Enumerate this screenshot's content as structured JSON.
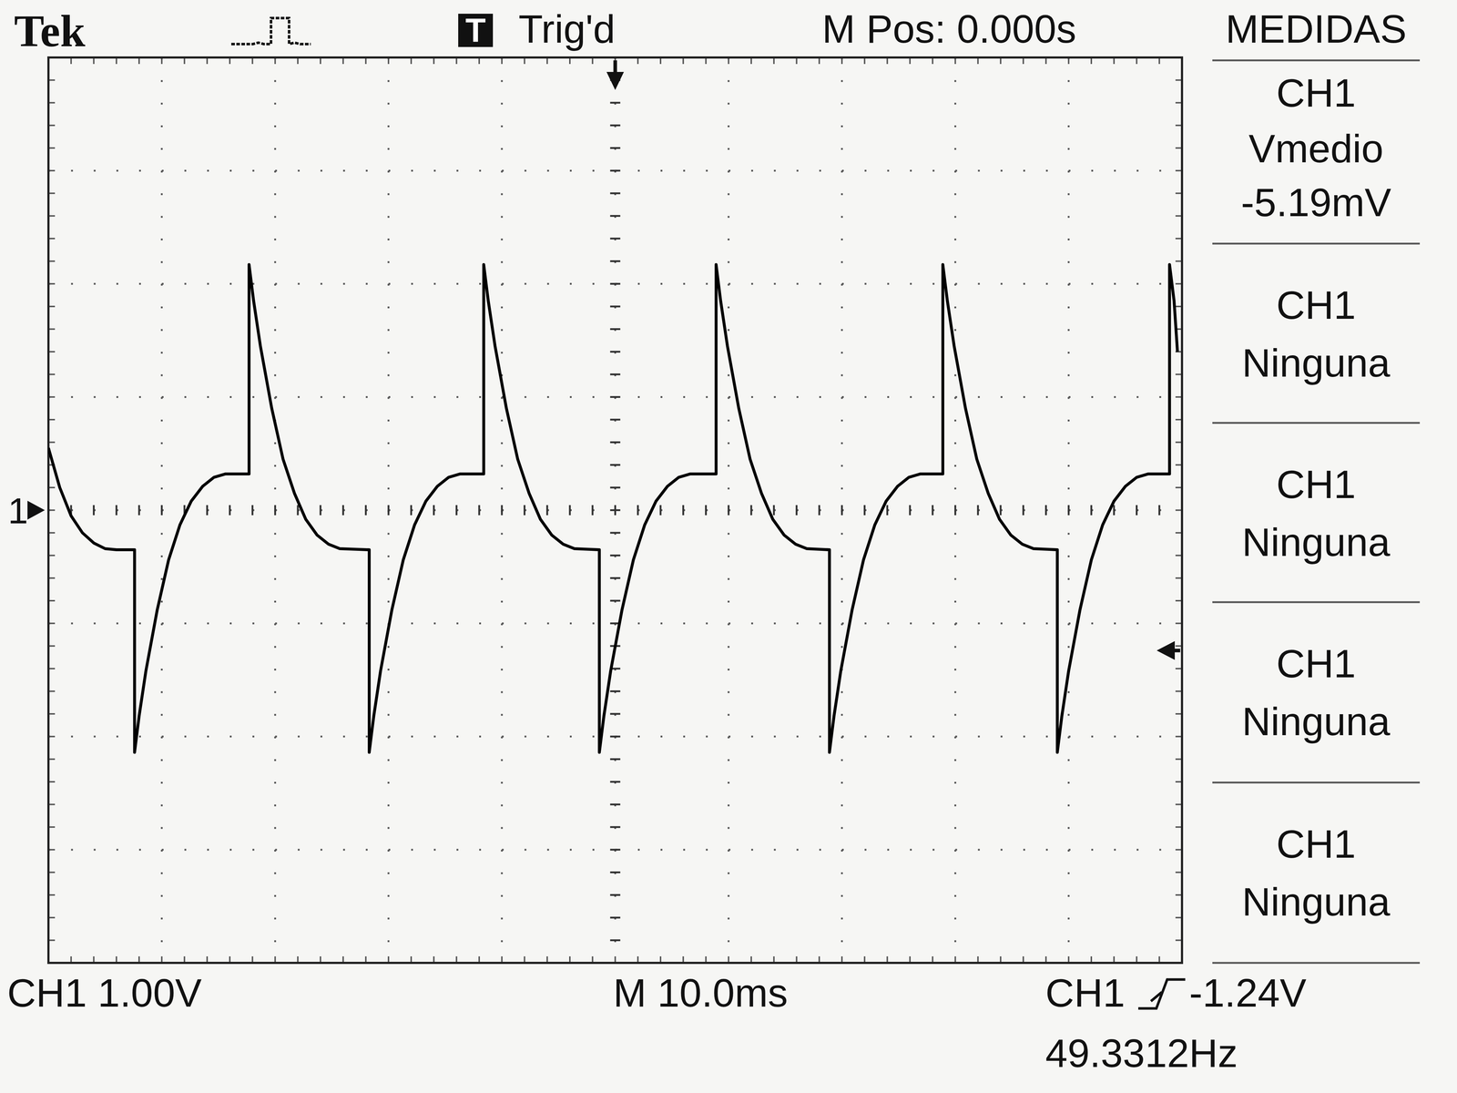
{
  "chart_data": {
    "type": "line",
    "color": "#000000",
    "grid": true,
    "tick_labels": false,
    "xlim": [
      -50,
      50
    ],
    "ylim": [
      -4,
      4
    ],
    "xticks": [
      -50,
      -40,
      -30,
      -20,
      -10,
      0,
      10,
      20,
      30,
      40,
      50
    ],
    "yticks": [
      -4,
      -3,
      -2,
      -1,
      0,
      1,
      2,
      3,
      4
    ],
    "x": [
      -50,
      -49,
      -48,
      -47,
      -46,
      -45,
      -44,
      -42.4,
      -42.4,
      -42.0,
      -41.4,
      -40.4,
      -39.4,
      -38.4,
      -37.4,
      -36.4,
      -35.4,
      -34.4,
      -32.3,
      -32.3,
      -31.9,
      -31.3,
      -30.3,
      -29.3,
      -28.3,
      -27.3,
      -26.3,
      -25.3,
      -24.3,
      -21.7,
      -21.7,
      -21.3,
      -20.7,
      -19.7,
      -18.7,
      -17.7,
      -16.7,
      -15.7,
      -14.7,
      -13.7,
      -11.6,
      -11.6,
      -11.2,
      -10.6,
      -9.6,
      -8.6,
      -7.6,
      -6.6,
      -5.6,
      -4.6,
      -3.6,
      -1.4,
      -1.4,
      -1.0,
      -0.4,
      0.6,
      1.6,
      2.6,
      3.6,
      4.6,
      5.6,
      6.6,
      8.9,
      8.9,
      9.3,
      9.9,
      10.9,
      11.9,
      12.9,
      13.9,
      14.9,
      15.9,
      16.9,
      18.9,
      18.9,
      19.3,
      19.9,
      20.9,
      21.9,
      22.9,
      23.9,
      24.9,
      25.9,
      26.9,
      28.9,
      28.9,
      29.3,
      29.9,
      30.9,
      31.9,
      32.9,
      33.9,
      34.9,
      35.9,
      36.9,
      39.0,
      39.0,
      39.4,
      40.0,
      41.0,
      42.0,
      43.0,
      44.0,
      45.0,
      46.0,
      47.0,
      48.9,
      48.9,
      49.3,
      49.6
    ],
    "values": [
      0.55,
      0.2,
      -0.05,
      -0.2,
      -0.29,
      -0.34,
      -0.35,
      -0.35,
      -2.14,
      -1.82,
      -1.42,
      -0.88,
      -0.44,
      -0.13,
      0.08,
      0.21,
      0.29,
      0.32,
      0.32,
      2.17,
      1.85,
      1.45,
      0.9,
      0.45,
      0.15,
      -0.08,
      -0.22,
      -0.3,
      -0.34,
      -0.35,
      -2.14,
      -1.82,
      -1.42,
      -0.88,
      -0.44,
      -0.13,
      0.08,
      0.21,
      0.29,
      0.32,
      0.32,
      2.17,
      1.85,
      1.45,
      0.9,
      0.45,
      0.15,
      -0.08,
      -0.22,
      -0.3,
      -0.34,
      -0.35,
      -2.14,
      -1.82,
      -1.42,
      -0.88,
      -0.44,
      -0.13,
      0.08,
      0.21,
      0.29,
      0.32,
      0.32,
      2.17,
      1.85,
      1.45,
      0.9,
      0.45,
      0.15,
      -0.08,
      -0.22,
      -0.3,
      -0.34,
      -0.35,
      -2.14,
      -1.82,
      -1.42,
      -0.88,
      -0.44,
      -0.13,
      0.08,
      0.21,
      0.29,
      0.32,
      0.32,
      2.17,
      1.85,
      1.45,
      0.9,
      0.45,
      0.15,
      -0.08,
      -0.22,
      -0.3,
      -0.34,
      -0.35,
      -2.14,
      -1.82,
      -1.42,
      -0.88,
      -0.44,
      -0.13,
      0.08,
      0.21,
      0.29,
      0.32,
      0.32,
      2.17,
      1.85,
      1.4
    ],
    "trigger_position": 0,
    "trigger_level": {
      "value": -1.24,
      "label": "-1.24V"
    },
    "ground_marker": {
      "value": 0,
      "label": "1"
    },
    "annotations": [
      "Tek",
      "T",
      "Trig'd",
      "M Pos: 0.000s",
      "MEDIDAS",
      "CH1 1.00V",
      "M 10.0ms",
      "CH1",
      "49.3312Hz"
    ],
    "measurements": [
      {
        "source": "CH1",
        "name": "Vmedio",
        "value": "-5.19mV"
      },
      {
        "source": "CH1",
        "name": "Ninguna"
      },
      {
        "source": "CH1",
        "name": "Ninguna"
      },
      {
        "source": "CH1",
        "name": "Ninguna"
      },
      {
        "source": "CH1",
        "name": "Ninguna"
      }
    ]
  }
}
